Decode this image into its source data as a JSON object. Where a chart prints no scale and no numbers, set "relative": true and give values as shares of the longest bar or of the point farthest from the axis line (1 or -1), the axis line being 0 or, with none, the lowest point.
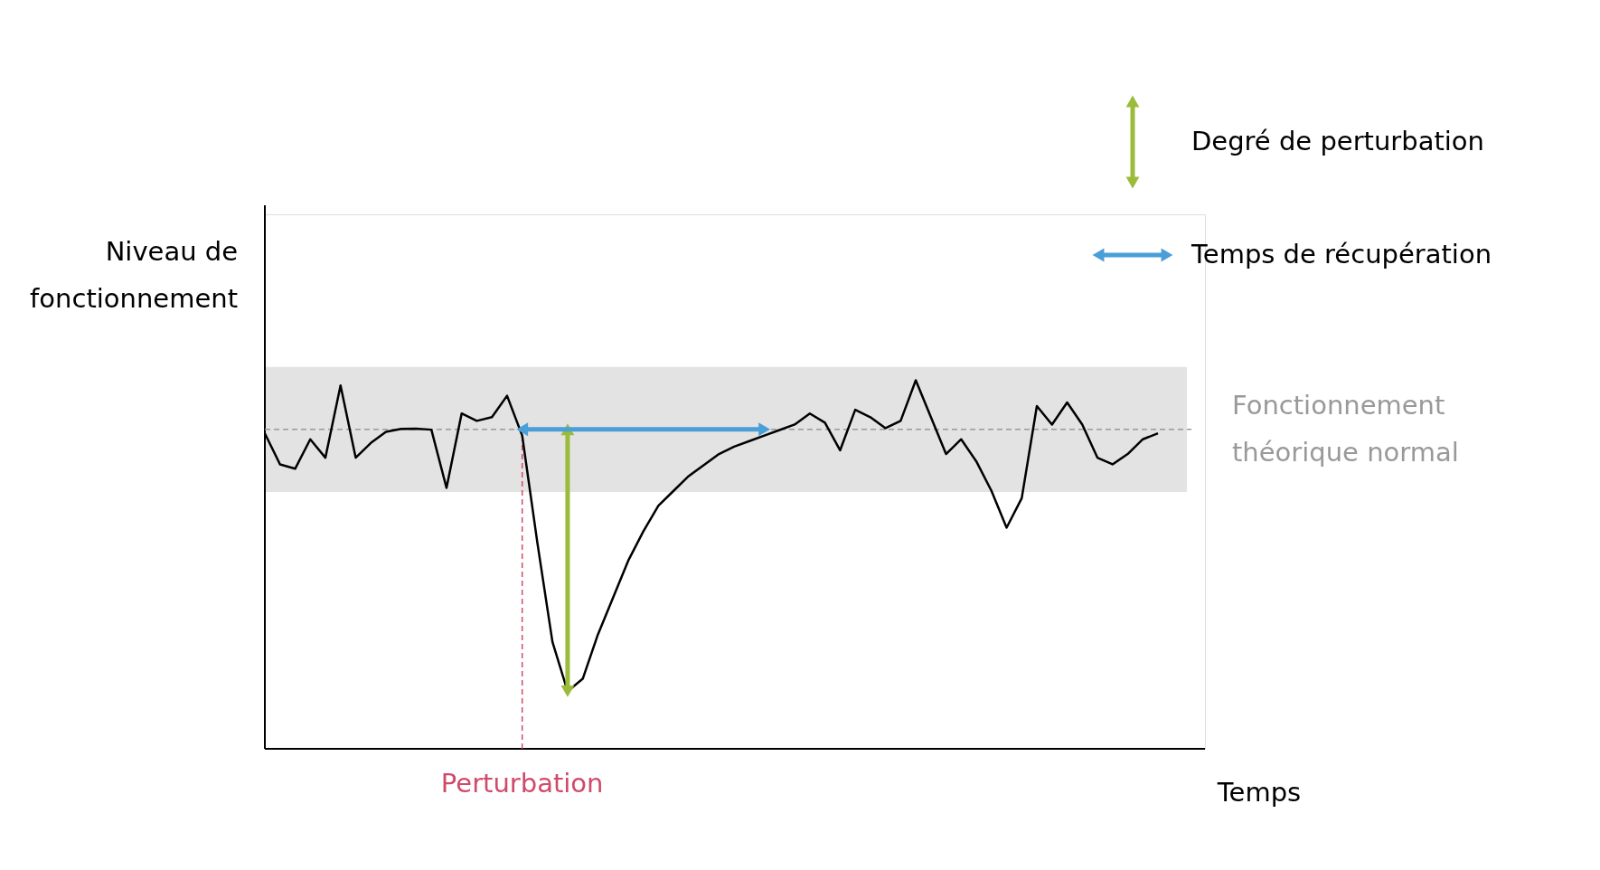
{
  "chart_data": {
    "type": "line",
    "relative": true,
    "xlabel": "Temps",
    "ylabel": "Niveau de fonctionnement",
    "line_style": "solid",
    "categories": [
      null,
      null,
      null,
      null,
      null,
      null,
      null,
      null,
      null,
      null,
      null,
      null,
      null,
      null,
      null,
      null,
      null,
      null,
      null,
      null,
      null,
      null,
      null,
      null,
      null,
      null,
      null,
      null,
      null,
      null,
      null,
      null,
      null,
      null,
      null,
      null,
      null,
      null,
      null,
      null,
      null,
      null,
      null,
      null,
      null,
      null,
      null,
      null,
      null,
      null,
      null,
      null,
      null,
      null,
      null,
      null,
      null,
      null,
      null,
      null
    ],
    "series": [
      {
        "color": "#000000",
        "values": [
          0.856,
          0.772,
          0.76,
          0.84,
          0.79,
          0.986,
          0.79,
          0.83,
          0.86,
          0.868,
          0.869,
          0.866,
          0.708,
          0.91,
          0.89,
          0.9,
          0.958,
          0.85,
          0.56,
          0.29,
          0.156,
          0.19,
          0.31,
          0.41,
          0.51,
          0.59,
          0.66,
          0.7,
          0.74,
          0.77,
          0.8,
          0.82,
          0.835,
          0.85,
          0.865,
          0.88,
          0.91,
          0.885,
          0.81,
          0.92,
          0.9,
          0.87,
          0.89,
          1.0,
          0.9,
          0.8,
          0.84,
          0.78,
          0.7,
          0.6,
          0.68,
          0.93,
          0.88,
          0.94,
          0.88,
          0.79,
          0.772,
          0.8,
          0.84,
          0.856
        ]
      }
    ],
    "annotations": [
      "Degré de perturbation",
      "Temps de récupération",
      "Perturbation"
    ],
    "ref_lines": [
      {
        "axis": "y",
        "value": 0.867,
        "label": "Fonctionnement théorique normal",
        "color": "#999999",
        "line_style": "dashed"
      }
    ],
    "bands": [
      {
        "axis": "y",
        "from": 0.697,
        "to": 1.036,
        "color": "#dcdcdc"
      }
    ]
  }
}
